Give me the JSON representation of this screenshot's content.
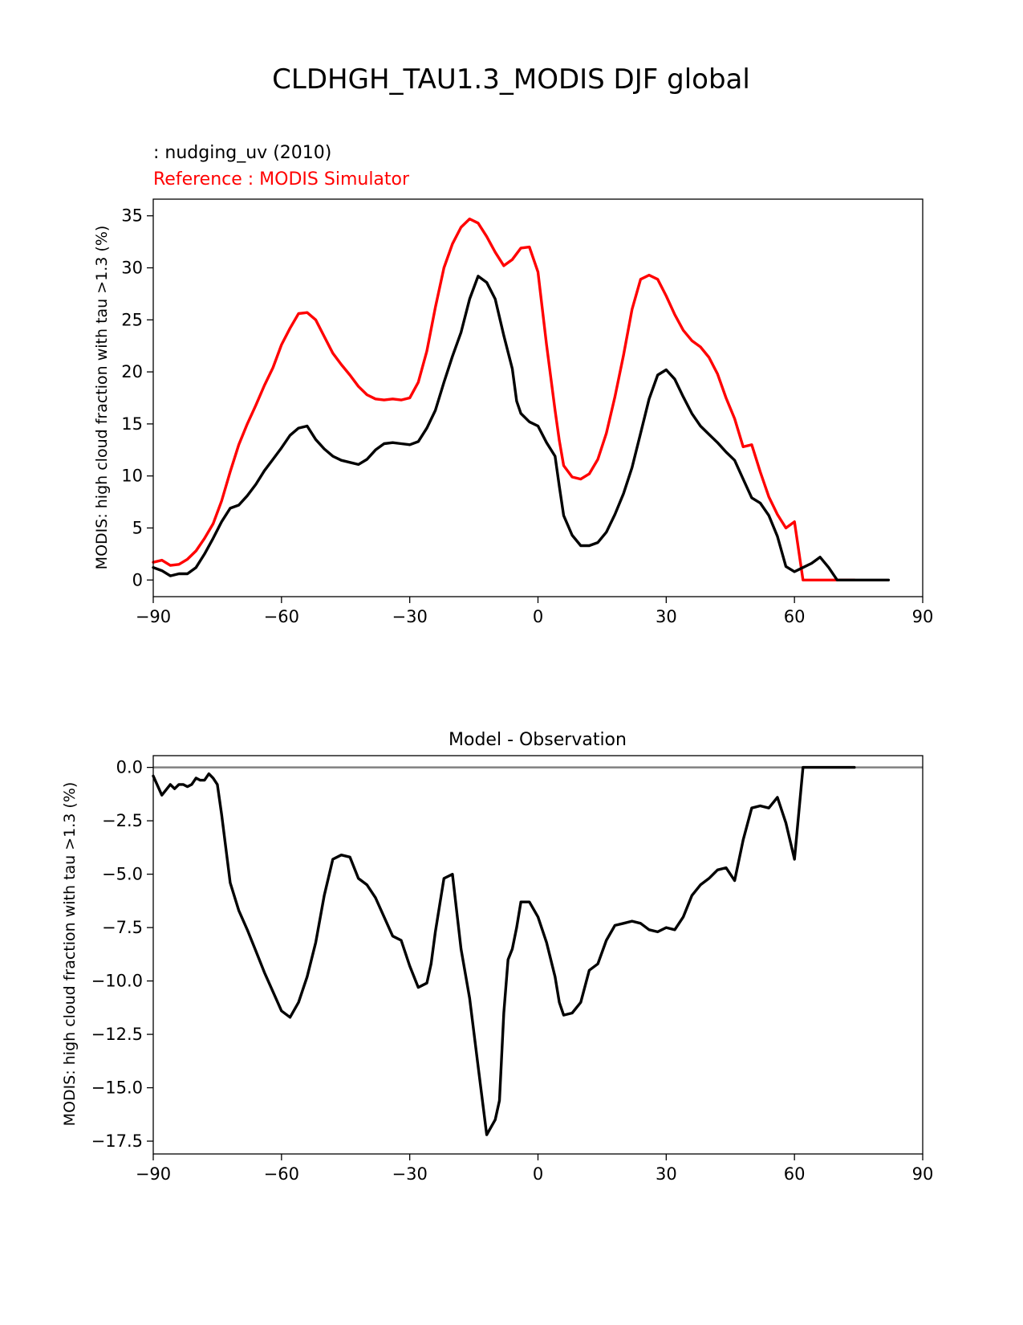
{
  "figure_title": "CLDHGH_TAU1.3_MODIS DJF global",
  "colors": {
    "test": "#000000",
    "reference": "#ff0000",
    "zero_line": "#808080",
    "axes": "#000000"
  },
  "chart_data": [
    {
      "type": "line",
      "test_label": " : nudging_uv (2010)",
      "reference_label": "Reference : MODIS Simulator",
      "xlabel": "",
      "ylabel": "MODIS: high cloud fraction with tau >1.3 (%)",
      "xlim": [
        -90,
        90
      ],
      "ylim": [
        -1.6,
        36.6
      ],
      "xticks": [
        -90,
        -60,
        -30,
        0,
        30,
        60,
        90
      ],
      "xtick_labels": [
        "−90",
        "−60",
        "−30",
        "0",
        "30",
        "60",
        "90"
      ],
      "yticks": [
        0,
        5,
        10,
        15,
        20,
        25,
        30,
        35
      ],
      "ytick_labels": [
        "0",
        "5",
        "10",
        "15",
        "20",
        "25",
        "30",
        "35"
      ],
      "series": [
        {
          "name": "test",
          "x": [
            -90,
            -88,
            -86,
            -84,
            -82,
            -80,
            -78,
            -76,
            -74,
            -72,
            -70,
            -68,
            -66,
            -64,
            -62,
            -60,
            -58,
            -56,
            -54,
            -52,
            -50,
            -48,
            -46,
            -44,
            -42,
            -40,
            -38,
            -36,
            -34,
            -32,
            -30,
            -28,
            -26,
            -24,
            -22,
            -20,
            -18,
            -16,
            -14,
            -12,
            -10,
            -8,
            -6,
            -5,
            -4,
            -2,
            0,
            2,
            4,
            5,
            6,
            8,
            10,
            12,
            14,
            16,
            18,
            20,
            22,
            24,
            26,
            28,
            30,
            32,
            34,
            36,
            38,
            40,
            42,
            44,
            46,
            48,
            50,
            52,
            54,
            56,
            58,
            60,
            62,
            64,
            66,
            68,
            70,
            72,
            74,
            76,
            78,
            79,
            80,
            81,
            82
          ],
          "values": [
            1.2,
            0.9,
            0.4,
            0.6,
            0.6,
            1.2,
            2.5,
            4.0,
            5.6,
            6.9,
            7.2,
            8.1,
            9.2,
            10.5,
            11.6,
            12.7,
            13.9,
            14.6,
            14.8,
            13.5,
            12.6,
            11.9,
            11.5,
            11.3,
            11.1,
            11.6,
            12.5,
            13.1,
            13.2,
            13.1,
            13.0,
            13.3,
            14.6,
            16.3,
            19.0,
            21.5,
            23.8,
            27.0,
            29.2,
            28.6,
            27.0,
            23.5,
            20.3,
            17.2,
            16.0,
            15.2,
            14.8,
            13.2,
            11.9,
            9.0,
            6.2,
            4.3,
            3.3,
            3.3,
            3.6,
            4.6,
            6.3,
            8.3,
            10.8,
            14.1,
            17.4,
            19.7,
            20.2,
            19.3,
            17.6,
            16.0,
            14.8,
            14.0,
            13.2,
            12.3,
            11.5,
            9.7,
            7.9,
            7.4,
            6.2,
            4.2,
            1.3,
            0.8,
            1.2,
            1.6,
            2.2,
            1.2,
            0.0,
            0.0,
            0.0,
            0.0,
            0.0,
            0.0,
            0.0,
            0.0,
            0.0
          ]
        },
        {
          "name": "reference",
          "x": [
            -90,
            -88,
            -86,
            -84,
            -82,
            -80,
            -78,
            -76,
            -74,
            -72,
            -70,
            -68,
            -66,
            -64,
            -62,
            -60,
            -58,
            -56,
            -54,
            -52,
            -50,
            -48,
            -46,
            -44,
            -42,
            -40,
            -38,
            -36,
            -34,
            -32,
            -30,
            -28,
            -26,
            -24,
            -22,
            -20,
            -18,
            -16,
            -14,
            -12,
            -10,
            -8,
            -6,
            -4,
            -2,
            0,
            2,
            4,
            5,
            6,
            8,
            10,
            12,
            14,
            16,
            18,
            20,
            22,
            24,
            26,
            28,
            30,
            32,
            34,
            36,
            38,
            40,
            42,
            44,
            46,
            48,
            50,
            52,
            54,
            56,
            58,
            60,
            62,
            64,
            66,
            68,
            70,
            72,
            74
          ],
          "values": [
            1.7,
            1.9,
            1.4,
            1.5,
            2.0,
            2.8,
            4.0,
            5.4,
            7.6,
            10.4,
            13.0,
            15.0,
            16.8,
            18.7,
            20.4,
            22.6,
            24.2,
            25.6,
            25.7,
            25.0,
            23.4,
            21.8,
            20.7,
            19.7,
            18.6,
            17.8,
            17.4,
            17.3,
            17.4,
            17.3,
            17.5,
            19.0,
            22.0,
            26.2,
            30.0,
            32.3,
            33.9,
            34.7,
            34.3,
            33.0,
            31.5,
            30.2,
            30.8,
            31.9,
            32.0,
            29.6,
            22.6,
            16.3,
            13.4,
            11.0,
            9.9,
            9.7,
            10.2,
            11.6,
            14.1,
            17.6,
            21.6,
            26.0,
            28.9,
            29.3,
            28.9,
            27.3,
            25.5,
            24.0,
            23.0,
            22.4,
            21.4,
            19.8,
            17.5,
            15.5,
            12.8,
            13.0,
            10.4,
            8.0,
            6.3,
            5.0,
            5.6,
            0,
            0,
            0,
            0,
            0,
            0,
            0
          ]
        }
      ]
    },
    {
      "type": "line",
      "title": "Model - Observation",
      "xlabel": "",
      "ylabel": "MODIS: high cloud fraction with tau >1.3 (%)",
      "xlim": [
        -90,
        90
      ],
      "ylim": [
        -18.1,
        0.55
      ],
      "xticks": [
        -90,
        -60,
        -30,
        0,
        30,
        60,
        90
      ],
      "xtick_labels": [
        "−90",
        "−60",
        "−30",
        "0",
        "30",
        "60",
        "90"
      ],
      "yticks": [
        0,
        -2.5,
        -5,
        -7.5,
        -10,
        -12.5,
        -15,
        -17.5
      ],
      "ytick_labels": [
        "0.0",
        "−2.5",
        "−5.0",
        "−7.5",
        "−10.0",
        "−12.5",
        "−15.0",
        "−17.5"
      ],
      "zero_line": 0,
      "series": [
        {
          "name": "difference",
          "x": [
            -90,
            -88,
            -86,
            -85,
            -84,
            -83,
            -82,
            -81,
            -80,
            -79,
            -78,
            -77,
            -76,
            -75,
            -74,
            -72,
            -70,
            -68,
            -66,
            -64,
            -62,
            -60,
            -58,
            -56,
            -54,
            -52,
            -50,
            -48,
            -46,
            -44,
            -42,
            -40,
            -38,
            -36,
            -34,
            -32,
            -30,
            -28,
            -26,
            -25,
            -24,
            -22,
            -20,
            -18,
            -16,
            -14,
            -12,
            -10,
            -9,
            -8,
            -7,
            -6,
            -5,
            -4,
            -2,
            0,
            2,
            4,
            5,
            6,
            8,
            10,
            12,
            14,
            16,
            18,
            20,
            22,
            24,
            26,
            28,
            30,
            32,
            34,
            36,
            38,
            40,
            42,
            44,
            46,
            48,
            50,
            52,
            54,
            56,
            58,
            60,
            62,
            64,
            66,
            68,
            70,
            71,
            72,
            73,
            74
          ],
          "values": [
            -0.4,
            -1.3,
            -0.8,
            -1.0,
            -0.8,
            -0.8,
            -0.9,
            -0.8,
            -0.5,
            -0.6,
            -0.6,
            -0.3,
            -0.5,
            -0.8,
            -2.2,
            -5.4,
            -6.7,
            -7.6,
            -8.6,
            -9.6,
            -10.5,
            -11.4,
            -11.7,
            -11.0,
            -9.8,
            -8.2,
            -6.0,
            -4.3,
            -4.1,
            -4.2,
            -5.2,
            -5.5,
            -6.1,
            -7.0,
            -7.9,
            -8.1,
            -9.3,
            -10.3,
            -10.1,
            -9.2,
            -7.7,
            -5.2,
            -5.0,
            -8.5,
            -10.8,
            -14.0,
            -17.2,
            -16.5,
            -15.6,
            -11.5,
            -9.0,
            -8.5,
            -7.5,
            -6.3,
            -6.3,
            -7.0,
            -8.2,
            -9.8,
            -11.0,
            -11.6,
            -11.5,
            -11.0,
            -9.5,
            -9.2,
            -8.1,
            -7.4,
            -7.3,
            -7.2,
            -7.3,
            -7.6,
            -7.7,
            -7.5,
            -7.6,
            -7.0,
            -6.0,
            -5.5,
            -5.2,
            -4.8,
            -4.7,
            -5.3,
            -3.4,
            -1.9,
            -1.8,
            -1.9,
            -1.4,
            -2.6,
            -4.3,
            0,
            0,
            0,
            0,
            0,
            0,
            0,
            0,
            0
          ]
        }
      ]
    }
  ]
}
